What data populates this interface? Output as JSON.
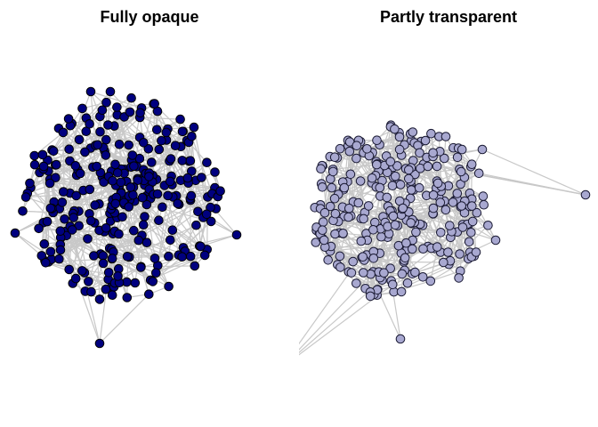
{
  "panels": [
    {
      "id": "left",
      "title": "Fully opaque",
      "node_fill": "#00007f",
      "node_stroke": "#000000",
      "edge_color": "#c8c8c8",
      "node_alpha": 1.0
    },
    {
      "id": "right",
      "title": "Partly transparent",
      "node_fill": "#a8a8d0",
      "node_stroke": "#1a1a33",
      "edge_color": "#c8c8c8",
      "node_alpha": 0.35
    }
  ]
}
